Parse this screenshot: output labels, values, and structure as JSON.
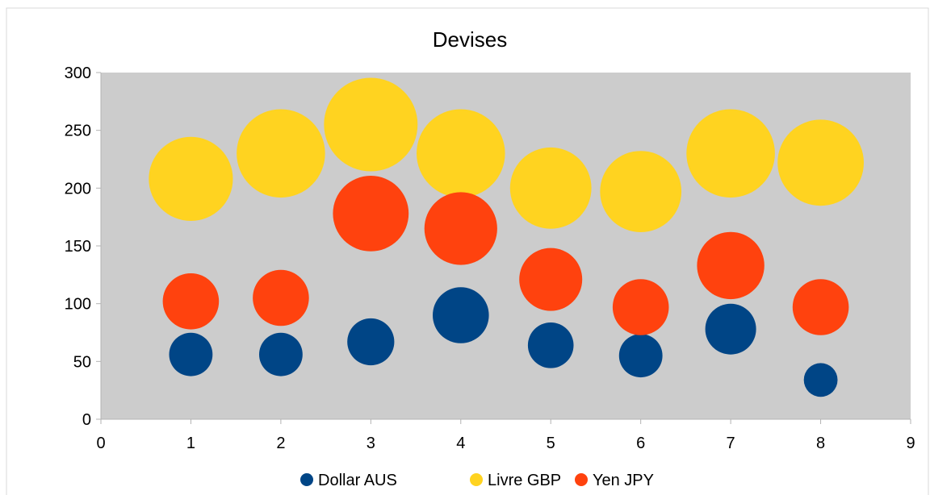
{
  "chart_data": {
    "type": "bubble",
    "title": "Devises",
    "xlabel": "",
    "ylabel": "",
    "xlim": [
      0,
      9
    ],
    "ylim": [
      0,
      300
    ],
    "x_ticks": [
      "0",
      "1",
      "2",
      "3",
      "4",
      "5",
      "6",
      "7",
      "8",
      "9"
    ],
    "y_ticks": [
      "0",
      "50",
      "100",
      "150",
      "200",
      "250",
      "300"
    ],
    "grid": false,
    "plot_background": "#cccccc",
    "legend_position": "bottom",
    "series": [
      {
        "name": "Dollar AUS",
        "color": "#004586",
        "points": [
          {
            "x": 1,
            "y": 56,
            "size": 30
          },
          {
            "x": 2,
            "y": 56,
            "size": 30
          },
          {
            "x": 3,
            "y": 67,
            "size": 35
          },
          {
            "x": 4,
            "y": 90,
            "size": 50
          },
          {
            "x": 5,
            "y": 64,
            "size": 33
          },
          {
            "x": 6,
            "y": 55,
            "size": 30
          },
          {
            "x": 7,
            "y": 78,
            "size": 41
          },
          {
            "x": 8,
            "y": 34,
            "size": 18
          }
        ]
      },
      {
        "name": "Livre GBP",
        "color": "#ffd320",
        "points": [
          {
            "x": 1,
            "y": 208,
            "size": 112
          },
          {
            "x": 2,
            "y": 230,
            "size": 124
          },
          {
            "x": 3,
            "y": 255,
            "size": 139
          },
          {
            "x": 4,
            "y": 230,
            "size": 124
          },
          {
            "x": 5,
            "y": 200,
            "size": 105
          },
          {
            "x": 6,
            "y": 197,
            "size": 105
          },
          {
            "x": 7,
            "y": 230,
            "size": 124
          },
          {
            "x": 8,
            "y": 222,
            "size": 118
          }
        ]
      },
      {
        "name": "Yen JPY",
        "color": "#ff420e",
        "points": [
          {
            "x": 1,
            "y": 102,
            "size": 50
          },
          {
            "x": 2,
            "y": 105,
            "size": 50
          },
          {
            "x": 3,
            "y": 178,
            "size": 91
          },
          {
            "x": 4,
            "y": 165,
            "size": 84
          },
          {
            "x": 5,
            "y": 121,
            "size": 63
          },
          {
            "x": 6,
            "y": 97,
            "size": 50
          },
          {
            "x": 7,
            "y": 133,
            "size": 72
          },
          {
            "x": 8,
            "y": 97,
            "size": 50
          }
        ]
      }
    ]
  }
}
